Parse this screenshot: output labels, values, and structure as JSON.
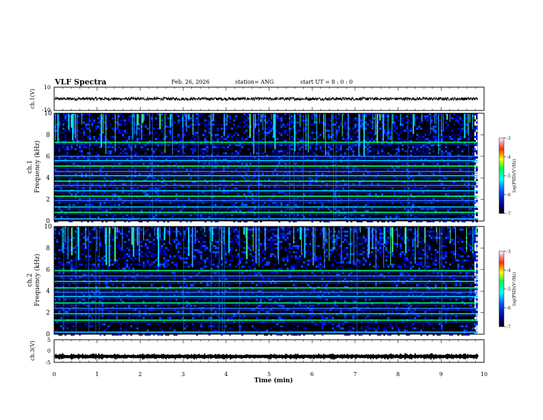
{
  "header": {
    "title": "VLF Spectra",
    "date": "Feb. 26, 2026",
    "station": "station= ANG",
    "start": "start  UT =   8 : 0  : 0"
  },
  "chart_data": [
    {
      "type": "line",
      "name": "ch1-waveform",
      "ylabel": "ch.1(V)",
      "ylim": [
        -10,
        10
      ],
      "y_ticks": [
        "10",
        "-10"
      ],
      "level": 0,
      "noise_amplitude": 1.3,
      "xlim": [
        0,
        10
      ],
      "x_end": 9.85
    },
    {
      "type": "heatmap",
      "name": "ch1-spectrogram",
      "ylabel_line1": "ch.1",
      "ylabel_line2": "Frequency (kHz)",
      "ylim": [
        0,
        10
      ],
      "y_ticks": [
        "0",
        "2",
        "4",
        "6",
        "8",
        "10"
      ],
      "xlim": [
        0,
        10
      ],
      "x_end": 9.85,
      "bands_khz": [
        0.8,
        1.3,
        1.9,
        2.3,
        2.8,
        3.3,
        3.7,
        4.2,
        4.6,
        5.1,
        5.6,
        6.0,
        7.3
      ],
      "colorbar": {
        "label": "log(PSD)(V²/Hz)",
        "ticks": [
          "-3",
          "-4",
          "-5",
          "-6",
          "-7"
        ],
        "range": [
          -7,
          -3
        ]
      }
    },
    {
      "type": "heatmap",
      "name": "ch2-spectrogram",
      "ylabel_line1": "ch.2",
      "ylabel_line2": "Frequency (kHz)",
      "ylim": [
        0,
        10
      ],
      "y_ticks": [
        "0",
        "2",
        "4",
        "6",
        "8",
        "10"
      ],
      "xlim": [
        0,
        10
      ],
      "x_end": 9.85,
      "bands_khz": [
        1.3,
        1.9,
        2.4,
        2.9,
        3.5,
        3.9,
        4.3,
        4.9,
        5.4,
        5.9
      ],
      "colorbar": {
        "label": "log(PSD)(V²/Hz)",
        "ticks": [
          "-3",
          "-4",
          "-5",
          "-6",
          "-7"
        ],
        "range": [
          -7,
          -3
        ]
      }
    },
    {
      "type": "line",
      "name": "ch3-waveform",
      "ylabel": "ch.3(V)",
      "ylim": [
        -5,
        5
      ],
      "y_ticks": [
        "5",
        "0",
        "-5"
      ],
      "level": -2.4,
      "noise_amplitude": 0.2,
      "xlim": [
        0,
        10
      ],
      "x_end": 9.85
    }
  ],
  "xaxis": {
    "label": "Time (min)",
    "ticks": [
      "0",
      "1",
      "2",
      "3",
      "4",
      "5",
      "6",
      "7",
      "8",
      "9",
      "10"
    ]
  }
}
